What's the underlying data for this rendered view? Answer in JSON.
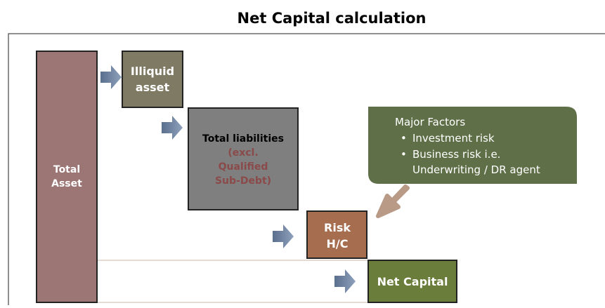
{
  "title": "Net Capital calculation",
  "nodes": [
    {
      "label": [
        "Total",
        "Asset"
      ]
    },
    {
      "label": [
        "Illiquid",
        "asset"
      ]
    },
    {
      "label": [
        "Total liabilities"
      ],
      "sublabel": [
        "(excl.",
        "Qualified",
        "Sub-Debt)"
      ]
    },
    {
      "label": [
        "Risk",
        "H/C"
      ]
    },
    {
      "label": [
        "Net Capital"
      ]
    }
  ],
  "callout": {
    "heading": "Major Factors",
    "items": [
      "Investment risk",
      "Business risk i.e.",
      "Underwriting / DR agent"
    ]
  }
}
